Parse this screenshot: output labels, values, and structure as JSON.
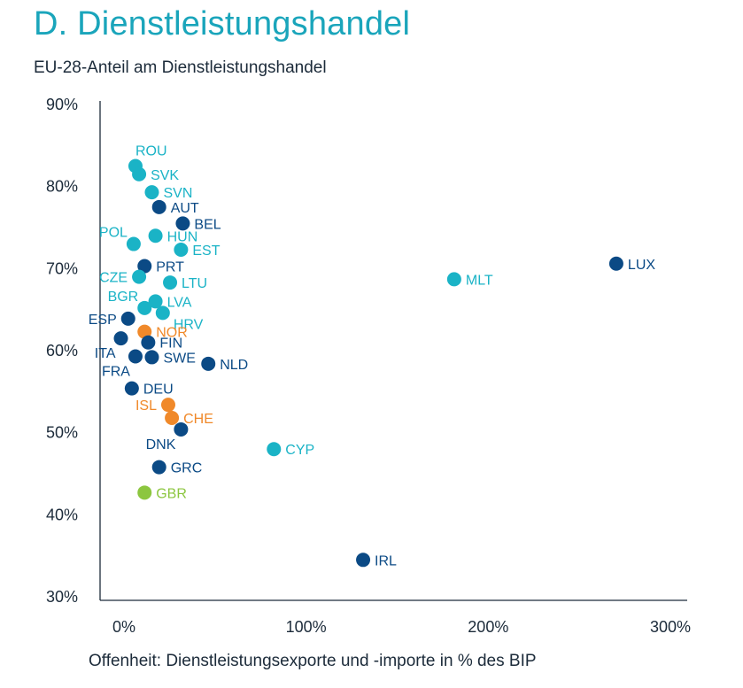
{
  "title": "D. Dienstleistungshandel",
  "subtitle": "EU-28-Anteil am Dienstleistungshandel",
  "colors": {
    "dark_blue": "#0b4a85",
    "cyan": "#1ab3c6",
    "orange": "#f0892a",
    "green": "#8cc63f",
    "axis": "#1c2b3a"
  },
  "chart_data": {
    "type": "scatter",
    "xlabel": "Offenheit: Dienstleistungsexporte und -importe in % des BIP",
    "ylabel": "",
    "xlim": [
      0,
      300
    ],
    "ylim": [
      30,
      90
    ],
    "x_ticks": [
      0,
      100,
      200,
      300
    ],
    "x_tick_labels": [
      "0%",
      "100%",
      "200%",
      "300%"
    ],
    "y_ticks": [
      30,
      40,
      50,
      60,
      70,
      80,
      90
    ],
    "y_tick_labels": [
      "30%",
      "40%",
      "50%",
      "60%",
      "70%",
      "80%",
      "90%"
    ],
    "grid": false,
    "points": [
      {
        "label": "ROU",
        "x": 17,
        "y": 82.5,
        "color": "cyan",
        "pos": "above"
      },
      {
        "label": "SVK",
        "x": 19,
        "y": 81.5,
        "color": "cyan",
        "pos": "right"
      },
      {
        "label": "SVN",
        "x": 26,
        "y": 79.3,
        "color": "cyan",
        "pos": "right"
      },
      {
        "label": "AUT",
        "x": 30,
        "y": 77.5,
        "color": "dark_blue",
        "pos": "right"
      },
      {
        "label": "BEL",
        "x": 43,
        "y": 75.5,
        "color": "dark_blue",
        "pos": "right"
      },
      {
        "label": "POL",
        "x": 16,
        "y": 73.0,
        "color": "cyan",
        "pos": "above-left"
      },
      {
        "label": "HUN",
        "x": 28,
        "y": 74.0,
        "color": "cyan",
        "pos": "right"
      },
      {
        "label": "EST",
        "x": 42,
        "y": 72.3,
        "color": "cyan",
        "pos": "right"
      },
      {
        "label": "PRT",
        "x": 22,
        "y": 70.3,
        "color": "dark_blue",
        "pos": "right"
      },
      {
        "label": "CZE",
        "x": 19,
        "y": 69.0,
        "color": "cyan",
        "pos": "left"
      },
      {
        "label": "LTU",
        "x": 36,
        "y": 68.3,
        "color": "cyan",
        "pos": "right"
      },
      {
        "label": "LVA",
        "x": 28,
        "y": 66.0,
        "color": "cyan",
        "pos": "right"
      },
      {
        "label": "BGR",
        "x": 22,
        "y": 65.2,
        "color": "cyan",
        "pos": "above-left"
      },
      {
        "label": "HRV",
        "x": 32,
        "y": 64.6,
        "color": "cyan",
        "pos": "below-right"
      },
      {
        "label": "ESP",
        "x": 13,
        "y": 63.9,
        "color": "dark_blue",
        "pos": "left"
      },
      {
        "label": "NOR",
        "x": 22,
        "y": 62.3,
        "color": "orange",
        "pos": "right"
      },
      {
        "label": "FIN",
        "x": 24,
        "y": 61.0,
        "color": "dark_blue",
        "pos": "right"
      },
      {
        "label": "ITA",
        "x": 9,
        "y": 61.5,
        "color": "dark_blue",
        "pos": "below-left"
      },
      {
        "label": "FRA",
        "x": 17,
        "y": 59.3,
        "color": "dark_blue",
        "pos": "below-left"
      },
      {
        "label": "SWE",
        "x": 26,
        "y": 59.2,
        "color": "dark_blue",
        "pos": "right"
      },
      {
        "label": "NLD",
        "x": 57,
        "y": 58.4,
        "color": "dark_blue",
        "pos": "right"
      },
      {
        "label": "DEU",
        "x": 15,
        "y": 55.4,
        "color": "dark_blue",
        "pos": "right"
      },
      {
        "label": "ISL",
        "x": 35,
        "y": 53.4,
        "color": "orange",
        "pos": "left"
      },
      {
        "label": "CHE",
        "x": 37,
        "y": 51.8,
        "color": "orange",
        "pos": "right"
      },
      {
        "label": "DNK",
        "x": 42,
        "y": 50.4,
        "color": "dark_blue",
        "pos": "below-left"
      },
      {
        "label": "CYP",
        "x": 93,
        "y": 48.0,
        "color": "cyan",
        "pos": "right"
      },
      {
        "label": "GRC",
        "x": 30,
        "y": 45.8,
        "color": "dark_blue",
        "pos": "right"
      },
      {
        "label": "GBR",
        "x": 22,
        "y": 42.7,
        "color": "green",
        "pos": "right"
      },
      {
        "label": "MLT",
        "x": 192,
        "y": 68.7,
        "color": "cyan",
        "pos": "right"
      },
      {
        "label": "LUX",
        "x": 281,
        "y": 70.6,
        "color": "dark_blue",
        "pos": "right"
      },
      {
        "label": "IRL",
        "x": 142,
        "y": 34.5,
        "color": "dark_blue",
        "pos": "right"
      }
    ]
  }
}
